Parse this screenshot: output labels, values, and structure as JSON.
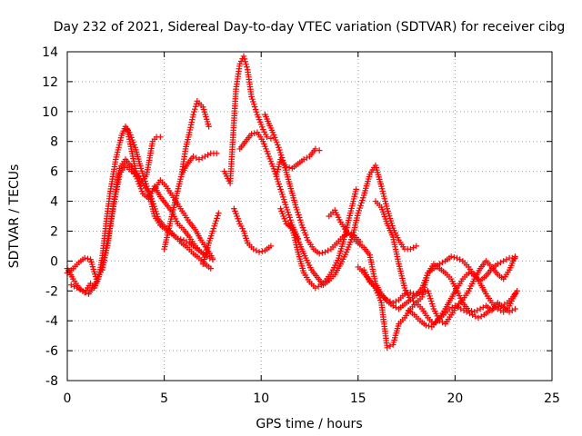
{
  "chart_data": {
    "type": "scatter",
    "title": "Day 232 of 2021, Sidereal Day-to-day VTEC variation (SDTVAR) for receiver cibg",
    "xlabel": "GPS time / hours",
    "ylabel": "SDTVAR / TECUs",
    "xlim": [
      0,
      25
    ],
    "ylim": [
      -8,
      14
    ],
    "xticks": [
      0,
      5,
      10,
      15,
      20,
      25
    ],
    "yticks": [
      -8,
      -6,
      -4,
      -2,
      0,
      2,
      4,
      6,
      8,
      10,
      12,
      14
    ],
    "grid": true,
    "marker": "+",
    "color": "#ff0000",
    "series": [
      {
        "name": "t1",
        "x": [
          0.0,
          0.3,
          0.6,
          0.9,
          1.2,
          1.5,
          1.8,
          2.1,
          2.4,
          2.7,
          3.0,
          3.3,
          3.6,
          3.9,
          4.2,
          4.5,
          4.8,
          5.1,
          5.4,
          5.7,
          6.0,
          6.3,
          6.6,
          6.9,
          7.2,
          7.5
        ],
        "y": [
          -0.8,
          -0.5,
          -0.1,
          0.2,
          0.1,
          -1.2,
          -0.6,
          1.2,
          4.0,
          6.2,
          6.8,
          6.3,
          5.5,
          4.5,
          4.2,
          5.0,
          4.3,
          3.8,
          3.3,
          2.5,
          2.1,
          1.6,
          1.0,
          0.6,
          0.3,
          0.1
        ]
      },
      {
        "name": "t2",
        "x": [
          0.0,
          0.3,
          0.6,
          0.9,
          1.2,
          1.4,
          1.6,
          1.8,
          2.0,
          2.2,
          2.5,
          2.8,
          3.0,
          3.2,
          3.5,
          3.8,
          4.1,
          4.4,
          4.7,
          5.0,
          5.3,
          5.6,
          5.9,
          6.2,
          6.5,
          6.8,
          7.1,
          7.4
        ],
        "y": [
          -0.5,
          -1.2,
          -1.8,
          -2.1,
          -1.5,
          -1.8,
          -1.2,
          0.2,
          2.5,
          4.5,
          6.8,
          8.4,
          9.0,
          8.6,
          7.6,
          6.2,
          5.0,
          4.0,
          2.8,
          2.3,
          2.0,
          1.6,
          1.2,
          0.9,
          0.5,
          0.2,
          -0.2,
          -0.5
        ]
      },
      {
        "name": "t3",
        "x": [
          0.2,
          0.5,
          0.8,
          1.1,
          1.3,
          1.5,
          1.8,
          2.1,
          2.4,
          2.7,
          3.0,
          3.3,
          3.6,
          3.9,
          4.2,
          4.5,
          4.8,
          5.1,
          5.4,
          5.7,
          6.0,
          6.3,
          6.6,
          6.9,
          7.2
        ],
        "y": [
          -1.6,
          -1.8,
          -2.0,
          -2.2,
          -1.8,
          -1.4,
          -0.4,
          1.5,
          3.8,
          5.8,
          6.4,
          6.0,
          5.8,
          5.2,
          4.6,
          3.0,
          2.4,
          2.1,
          1.8,
          1.5,
          1.4,
          1.2,
          0.9,
          0.6,
          0.3
        ]
      },
      {
        "name": "t4",
        "x": [
          3.1,
          3.3,
          3.5,
          3.8,
          4.1,
          4.4,
          4.6,
          4.8
        ],
        "y": [
          8.8,
          7.5,
          6.2,
          5.2,
          5.8,
          8.0,
          8.3,
          8.3
        ]
      },
      {
        "name": "t5",
        "x": [
          4.5,
          4.8,
          5.1,
          5.4,
          5.7,
          6.0,
          6.3,
          6.6,
          6.9,
          7.2,
          7.5
        ],
        "y": [
          4.8,
          5.4,
          5.0,
          4.4,
          3.8,
          3.2,
          2.6,
          2.1,
          1.4,
          0.8,
          0.2
        ]
      },
      {
        "name": "t6",
        "x": [
          5.0,
          5.3,
          5.6,
          5.9,
          6.1,
          6.3,
          6.5,
          6.7,
          7.0,
          7.3
        ],
        "y": [
          0.8,
          2.5,
          4.2,
          5.8,
          7.5,
          8.6,
          9.8,
          10.7,
          10.3,
          9.0
        ]
      },
      {
        "name": "t7",
        "x": [
          5.9,
          6.2,
          6.5,
          6.8,
          7.1,
          7.4,
          7.7
        ],
        "y": [
          5.8,
          6.5,
          7.0,
          6.8,
          7.0,
          7.2,
          7.2
        ]
      },
      {
        "name": "t8",
        "x": [
          7.0,
          7.3,
          7.5,
          7.8
        ],
        "y": [
          -0.2,
          1.2,
          2.0,
          3.2
        ]
      },
      {
        "name": "t9",
        "x": [
          8.1,
          8.4,
          8.7,
          8.9,
          9.1,
          9.3,
          9.5,
          9.8,
          10.1,
          10.3,
          10.5
        ],
        "y": [
          6.0,
          5.2,
          11.5,
          13.2,
          13.7,
          12.8,
          11.0,
          9.8,
          8.8,
          8.3,
          8.2
        ]
      },
      {
        "name": "t10",
        "x": [
          8.9,
          9.2,
          9.5,
          9.8,
          10.1,
          10.4,
          10.7,
          11.0,
          11.3,
          11.6,
          11.9
        ],
        "y": [
          7.5,
          8.0,
          8.5,
          8.6,
          8.0,
          7.0,
          6.0,
          4.8,
          3.6,
          2.4,
          1.5
        ]
      },
      {
        "name": "t11",
        "x": [
          8.6,
          8.9,
          9.1,
          9.3,
          9.6,
          9.9,
          10.2,
          10.5
        ],
        "y": [
          3.5,
          2.5,
          2.0,
          1.2,
          0.8,
          0.6,
          0.7,
          1.0
        ]
      },
      {
        "name": "t12",
        "x": [
          10.2,
          10.6,
          10.9,
          11.2,
          11.5,
          11.8,
          12.1,
          12.4,
          12.7,
          13.0,
          13.3,
          13.6,
          13.9,
          14.2,
          14.5,
          14.8,
          15.1
        ],
        "y": [
          9.8,
          8.6,
          7.6,
          6.4,
          5.0,
          3.6,
          2.4,
          1.4,
          0.8,
          0.5,
          0.6,
          0.8,
          1.2,
          1.6,
          1.9,
          1.7,
          1.3
        ]
      },
      {
        "name": "t13",
        "x": [
          11.0,
          11.3,
          11.6,
          11.9,
          12.2,
          12.5,
          12.8,
          13.1,
          13.4,
          13.7,
          14.0,
          14.3,
          14.6,
          14.9
        ],
        "y": [
          3.5,
          2.5,
          2.2,
          0.6,
          -0.8,
          -1.4,
          -1.8,
          -1.6,
          -1.2,
          -0.6,
          0.2,
          1.6,
          3.2,
          4.8
        ]
      },
      {
        "name": "t14",
        "x": [
          10.8,
          11.0,
          11.3,
          11.6,
          11.9,
          12.2,
          12.5,
          12.8,
          13.0
        ],
        "y": [
          5.8,
          6.8,
          6.3,
          6.2,
          6.5,
          6.8,
          7.0,
          7.5,
          7.4
        ]
      },
      {
        "name": "t15",
        "x": [
          11.4,
          11.7,
          12.0,
          12.3,
          12.6,
          12.9,
          13.2,
          13.5,
          13.8,
          14.1,
          14.4,
          14.7,
          15.0,
          15.3,
          15.6,
          15.9,
          16.2,
          16.5,
          16.8,
          17.1,
          17.4,
          17.7,
          18.0
        ],
        "y": [
          2.5,
          1.9,
          1.1,
          0.2,
          -0.6,
          -1.1,
          -1.6,
          -1.3,
          -0.9,
          -0.2,
          0.6,
          1.6,
          3.2,
          4.4,
          5.8,
          6.4,
          5.0,
          3.5,
          2.2,
          1.4,
          0.8,
          0.8,
          1.0
        ]
      },
      {
        "name": "t16",
        "x": [
          13.5,
          13.8,
          14.1,
          14.4,
          14.7,
          15.0,
          15.3,
          15.6,
          15.9,
          16.2,
          16.5,
          16.8,
          17.1,
          17.4,
          17.7,
          18.0,
          18.3,
          18.6,
          18.9,
          19.2,
          19.5,
          19.8,
          20.1,
          20.4,
          20.7,
          21.0,
          21.3,
          21.6,
          21.9,
          22.2,
          22.5,
          22.8,
          23.1
        ],
        "y": [
          3.0,
          3.4,
          2.6,
          2.0,
          1.6,
          1.2,
          0.9,
          0.4,
          -1.5,
          -2.2,
          -2.7,
          -3.0,
          -3.2,
          -2.9,
          -2.6,
          -2.8,
          -3.2,
          -3.8,
          -4.2,
          -3.8,
          -3.2,
          -2.5,
          -1.8,
          -1.2,
          -0.8,
          -0.9,
          -1.5,
          -2.2,
          -2.8,
          -3.2,
          -3.4,
          -3.0,
          -2.2
        ]
      },
      {
        "name": "t17",
        "x": [
          15.3,
          15.6,
          15.9,
          16.2,
          16.5,
          16.8,
          17.1,
          17.4,
          17.7,
          18.0,
          18.3,
          18.6,
          18.9,
          19.2,
          19.5,
          19.8,
          20.1,
          20.4,
          20.7,
          21.0,
          21.3,
          21.6,
          21.9,
          22.2,
          22.5,
          22.8,
          23.1
        ],
        "y": [
          -0.6,
          -1.4,
          -1.8,
          -2.3,
          -2.6,
          -2.8,
          -2.6,
          -2.2,
          -2.1,
          -2.3,
          -1.8,
          -0.8,
          -0.2,
          -0.5,
          -0.8,
          -1.2,
          -2.0,
          -2.8,
          -3.3,
          -3.4,
          -3.2,
          -3.0,
          -3.3,
          -2.8,
          -3.1,
          -3.4,
          -3.2
        ]
      },
      {
        "name": "t18",
        "x": [
          15.9,
          16.2,
          16.5,
          16.8,
          17.1,
          17.4,
          17.7,
          18.0,
          18.3,
          18.6,
          18.9,
          19.2,
          19.5,
          19.8,
          20.1,
          20.4,
          20.7,
          21.0,
          21.3,
          21.6,
          21.9,
          22.2,
          22.5,
          22.8,
          23.1
        ],
        "y": [
          4.0,
          3.6,
          2.5,
          1.6,
          -0.2,
          -1.8,
          -2.6,
          -2.2,
          -2.1,
          -2.0,
          -3.2,
          -4.0,
          -4.2,
          -3.6,
          -3.0,
          -2.6,
          -2.0,
          -1.2,
          -0.5,
          0.0,
          -0.4,
          -0.9,
          -1.2,
          -0.6,
          0.3
        ]
      },
      {
        "name": "t19",
        "x": [
          15.0,
          15.3,
          15.6,
          15.9,
          16.2,
          16.5,
          16.8,
          17.1,
          17.4,
          17.7,
          18.0,
          18.3,
          18.6,
          18.9,
          19.2,
          19.5,
          19.8,
          20.1,
          20.4,
          20.7,
          21.0,
          21.3,
          21.6,
          21.9,
          22.2,
          22.5,
          22.8,
          23.1
        ],
        "y": [
          -0.4,
          -0.8,
          -1.3,
          -1.8,
          -2.8,
          -5.8,
          -5.6,
          -4.2,
          -3.8,
          -3.2,
          -2.8,
          -2.4,
          -0.8,
          -0.5,
          -0.2,
          0.0,
          0.3,
          0.2,
          0.0,
          -0.4,
          -1.0,
          -1.3,
          -1.0,
          -0.5,
          -0.2,
          0.0,
          0.2,
          0.2
        ]
      },
      {
        "name": "t20",
        "x": [
          17.6,
          17.9,
          18.2,
          18.5,
          18.8,
          19.1,
          19.4,
          19.7,
          20.0,
          20.3,
          20.6,
          20.9,
          21.2,
          21.5,
          21.8,
          22.1,
          22.4,
          22.7,
          23.0,
          23.2
        ],
        "y": [
          -3.3,
          -3.6,
          -4.0,
          -4.3,
          -4.4,
          -4.0,
          -3.6,
          -3.2,
          -3.0,
          -3.2,
          -3.4,
          -3.6,
          -3.8,
          -3.6,
          -3.3,
          -3.1,
          -3.0,
          -2.8,
          -2.4,
          -2.0
        ]
      }
    ]
  }
}
